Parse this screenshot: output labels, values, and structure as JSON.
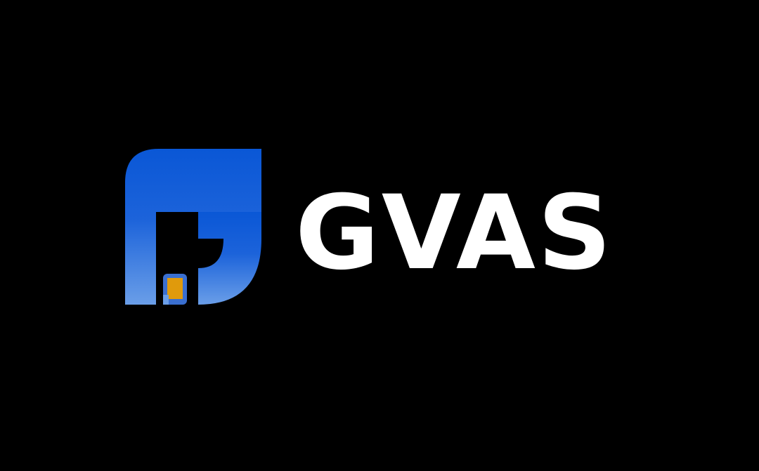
{
  "brand": {
    "name": "GVAS",
    "colors": {
      "background": "#000000",
      "text": "#ffffff",
      "mark_primary": "#0a57d6",
      "mark_light": "#5c94e6",
      "sim_chip": "#e09a0c",
      "sim_border": "#3a6fd0"
    },
    "mark_icon": "g-sim-card-logo-icon"
  }
}
